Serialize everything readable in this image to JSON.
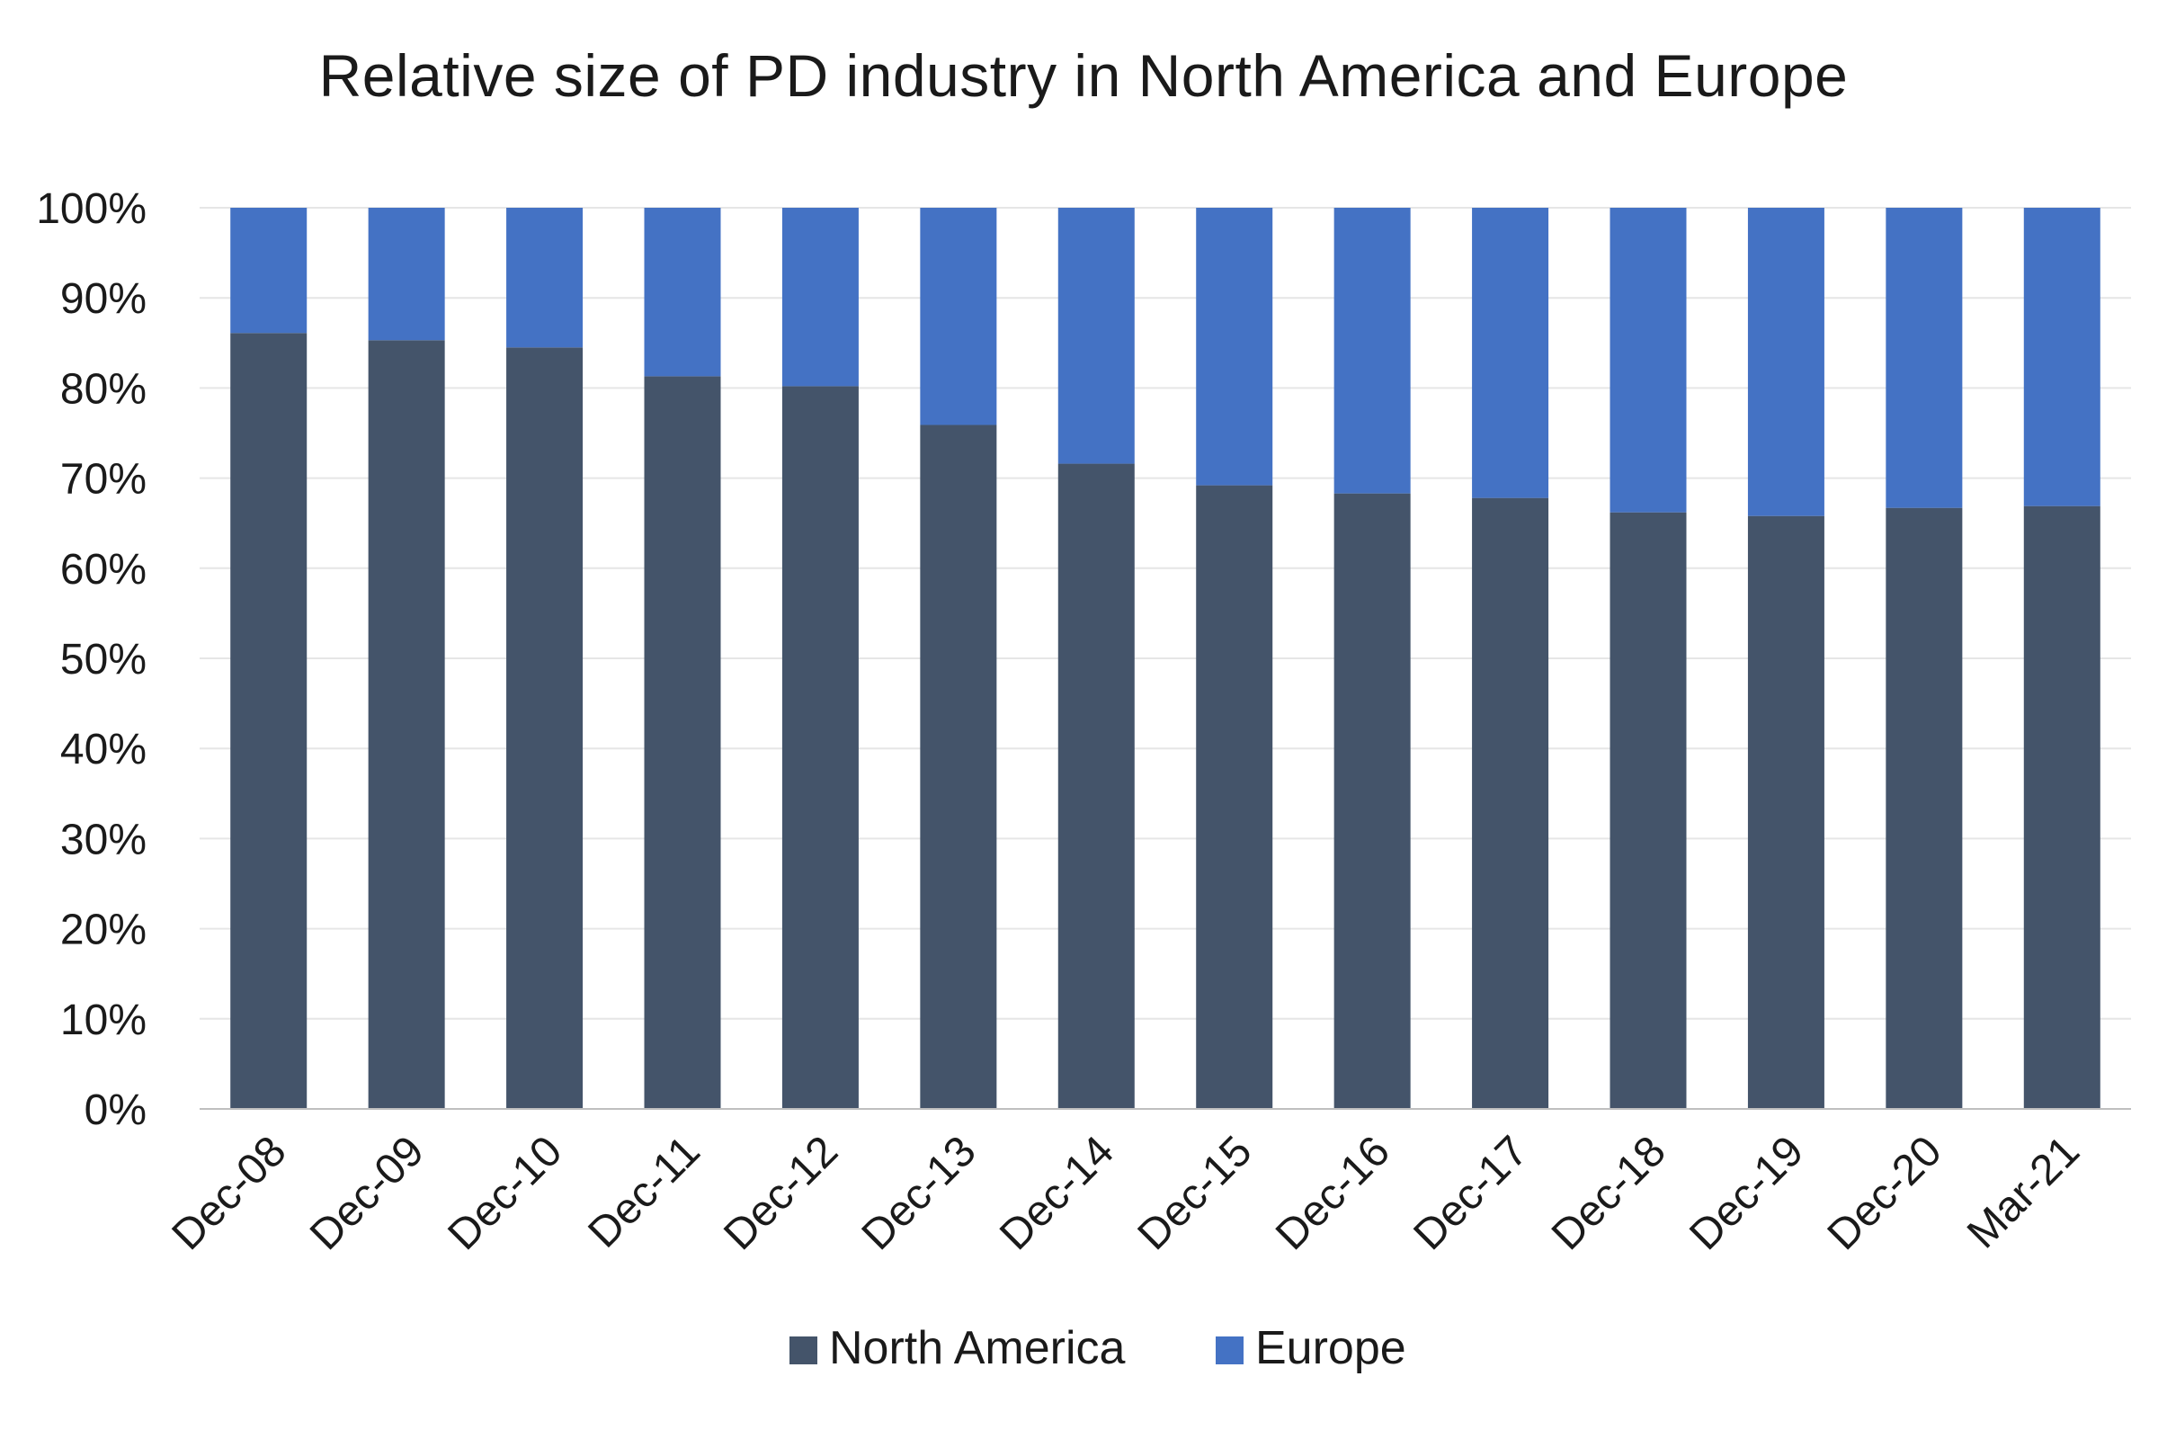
{
  "chart_data": {
    "type": "bar",
    "stacked": true,
    "percent_stacked": true,
    "title": "Relative size of PD industry in North America and Europe",
    "xlabel": "",
    "ylabel": "",
    "categories": [
      "Dec-08",
      "Dec-09",
      "Dec-10",
      "Dec-11",
      "Dec-12",
      "Dec-13",
      "Dec-14",
      "Dec-15",
      "Dec-16",
      "Dec-17",
      "Dec-18",
      "Dec-19",
      "Dec-20",
      "Mar-21"
    ],
    "series": [
      {
        "name": "North America",
        "color": "#44546a",
        "values": [
          86.1,
          85.3,
          84.5,
          81.3,
          80.2,
          75.9,
          71.6,
          69.2,
          68.3,
          67.8,
          66.2,
          65.8,
          66.7,
          66.9
        ]
      },
      {
        "name": "Europe",
        "color": "#4472c4",
        "values": [
          13.9,
          14.7,
          15.5,
          18.7,
          19.8,
          24.1,
          28.4,
          30.8,
          31.7,
          32.2,
          33.8,
          34.2,
          33.3,
          33.1
        ]
      }
    ],
    "ylim": [
      0,
      100
    ],
    "yticks": [
      "0%",
      "10%",
      "20%",
      "30%",
      "40%",
      "50%",
      "60%",
      "70%",
      "80%",
      "90%",
      "100%"
    ],
    "grid": true,
    "legend_position": "bottom"
  }
}
